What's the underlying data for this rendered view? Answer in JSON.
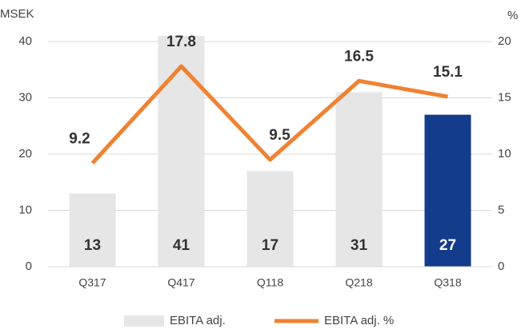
{
  "chart_data": {
    "type": "bar_line",
    "y_label": "MSEK",
    "y2_label": "%",
    "categories": [
      "Q317",
      "Q417",
      "Q118",
      "Q218",
      "Q318"
    ],
    "series": [
      {
        "name": "EBITA adj.",
        "type": "bar",
        "color": "#e6e6e6",
        "colors": [
          "#e6e6e6",
          "#e6e6e6",
          "#e6e6e6",
          "#e6e6e6",
          "#143c8c"
        ],
        "label_colors": [
          "#333333",
          "#333333",
          "#333333",
          "#333333",
          "#ffffff"
        ],
        "values": [
          13,
          41,
          17,
          31,
          27
        ]
      },
      {
        "name": "EBITA adj. %",
        "type": "line",
        "axis": "y2",
        "color": "#f08232",
        "values": [
          9.2,
          17.8,
          9.5,
          16.5,
          15.1
        ]
      }
    ],
    "ylim": [
      0,
      40
    ],
    "yticks": [
      0,
      10,
      20,
      30,
      40
    ],
    "y2lim": [
      0,
      20
    ],
    "y2ticks": [
      0,
      5,
      10,
      15,
      20
    ],
    "grid": true,
    "legend": "bottom"
  }
}
